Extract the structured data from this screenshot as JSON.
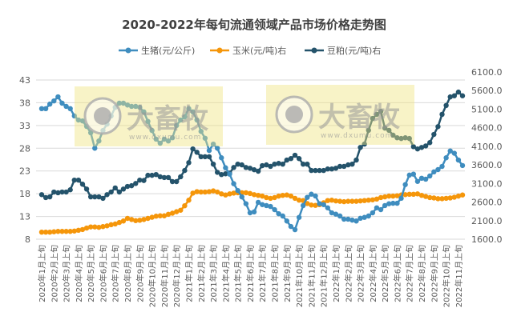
{
  "chart_data": {
    "type": "line",
    "title": "2020-2022年每旬流通领域产品市场价格走势图",
    "xlabel": "",
    "ylabel": "",
    "left_axis": {
      "ticks": [
        "8",
        "13",
        "18",
        "23",
        "28",
        "33",
        "38",
        "43"
      ],
      "range": [
        8,
        43
      ]
    },
    "right_axis": {
      "ticks": [
        "1600.0",
        "2100.0",
        "2600.0",
        "3100.0",
        "3600.0",
        "4100.0",
        "4600.0",
        "5100.0",
        "5600.0",
        "6100.0"
      ],
      "range": [
        1600,
        6100
      ]
    },
    "grid": true,
    "legend_position": "top",
    "x_tick_labels": [
      "2020年1月上旬",
      "2020年2月上旬",
      "2020年3月上旬",
      "2020年4月上旬",
      "2020年5月上旬",
      "2020年6月上旬",
      "2020年7月上旬",
      "2020年8月上旬",
      "2020年9月上旬",
      "2020年10月上旬",
      "2020年11月上旬",
      "2020年12月上旬",
      "2021年1月上旬",
      "2021年2月上旬",
      "2021年3月上旬",
      "2021年4月上旬",
      "2021年5月上旬",
      "2021年6月上旬",
      "2021年7月上旬",
      "2021年8月上旬",
      "2021年9月上旬",
      "2021年10月上旬",
      "2021年11月上旬",
      "2021年12月上旬",
      "2022年1月上旬",
      "2022年2月上旬",
      "2022年3月上旬",
      "2022年4月上旬",
      "2022年5月上旬",
      "2022年6月上旬",
      "2022年7月上旬",
      "2022年8月上旬",
      "2022年9月上旬",
      "2022年10月上旬",
      "2022年11月上旬"
    ],
    "series": [
      {
        "name": "生猪(元/公斤)",
        "axis": "left",
        "color": "#3f8dbf",
        "values": [
          36.7,
          36.7,
          37.7,
          38.4,
          39.3,
          37.9,
          37.2,
          36.7,
          35.1,
          34.2,
          34,
          32.8,
          31.4,
          28,
          29.6,
          31.9,
          33.3,
          35.1,
          37,
          37.9,
          37.9,
          37.5,
          37.2,
          37.2,
          37,
          36,
          33.9,
          31.9,
          30,
          29.1,
          30,
          29.6,
          30.3,
          33,
          34.2,
          34.9,
          36.7,
          36,
          34.2,
          31.7,
          30.2,
          27.5,
          28.9,
          28,
          25.9,
          23.7,
          22.3,
          20.2,
          18.7,
          17.3,
          15.8,
          13.8,
          14,
          16.1,
          15.6,
          15.4,
          15.2,
          14.5,
          13.6,
          13.1,
          12,
          10.8,
          10.1,
          12.8,
          15.4,
          17.2,
          17.9,
          17.5,
          15.8,
          15.6,
          14.9,
          13.8,
          13.5,
          13.1,
          12.4,
          12.4,
          12.2,
          12,
          12.6,
          12.8,
          13.1,
          13.8,
          14.9,
          14.5,
          15.4,
          15.8,
          15.9,
          15.9,
          17,
          20,
          22.1,
          22.3,
          20.7,
          21.4,
          21.2,
          21.9,
          22.8,
          23.3,
          24,
          25.9,
          27.4,
          26.9,
          25.4,
          24.2
        ]
      },
      {
        "name": "玉米(元/吨)右",
        "axis": "right",
        "color": "#f5960a",
        "values": [
          1790,
          1790,
          1790,
          1800,
          1810,
          1810,
          1810,
          1810,
          1820,
          1840,
          1860,
          1900,
          1930,
          1930,
          1920,
          1940,
          1960,
          1990,
          2010,
          2050,
          2090,
          2160,
          2130,
          2100,
          2110,
          2130,
          2160,
          2190,
          2220,
          2230,
          2230,
          2270,
          2300,
          2340,
          2380,
          2500,
          2650,
          2840,
          2880,
          2870,
          2870,
          2880,
          2900,
          2870,
          2820,
          2790,
          2820,
          2840,
          2850,
          2850,
          2850,
          2830,
          2800,
          2780,
          2760,
          2720,
          2700,
          2720,
          2760,
          2780,
          2790,
          2760,
          2700,
          2650,
          2640,
          2560,
          2520,
          2510,
          2530,
          2580,
          2640,
          2650,
          2630,
          2620,
          2610,
          2620,
          2620,
          2620,
          2630,
          2640,
          2650,
          2660,
          2680,
          2720,
          2740,
          2760,
          2760,
          2770,
          2790,
          2800,
          2810,
          2810,
          2820,
          2780,
          2750,
          2720,
          2710,
          2690,
          2690,
          2700,
          2710,
          2730,
          2760,
          2790
        ]
      },
      {
        "name": "豆粕(元/吨)右",
        "axis": "right",
        "color": "#24536b",
        "values": [
          2800,
          2720,
          2740,
          2870,
          2850,
          2870,
          2870,
          2930,
          3190,
          3190,
          3080,
          2950,
          2740,
          2740,
          2740,
          2700,
          2800,
          2870,
          2980,
          2870,
          2950,
          3020,
          3040,
          3100,
          3190,
          3180,
          3320,
          3320,
          3340,
          3280,
          3260,
          3260,
          3150,
          3150,
          3280,
          3450,
          3660,
          4030,
          3940,
          3820,
          3820,
          3820,
          3620,
          3400,
          3340,
          3360,
          3380,
          3530,
          3620,
          3600,
          3530,
          3510,
          3470,
          3430,
          3580,
          3600,
          3560,
          3620,
          3640,
          3620,
          3730,
          3770,
          3860,
          3770,
          3620,
          3620,
          3450,
          3450,
          3450,
          3450,
          3490,
          3490,
          3510,
          3560,
          3560,
          3600,
          3620,
          3730,
          4070,
          4160,
          4530,
          4850,
          4960,
          5040,
          4590,
          4530,
          4400,
          4330,
          4310,
          4330,
          4310,
          4090,
          4030,
          4070,
          4110,
          4200,
          4420,
          4630,
          4960,
          5200,
          5430,
          5460,
          5560,
          5460
        ]
      }
    ]
  },
  "watermark": {
    "brand": "大畜牧",
    "url": "www.dxumu.com"
  }
}
